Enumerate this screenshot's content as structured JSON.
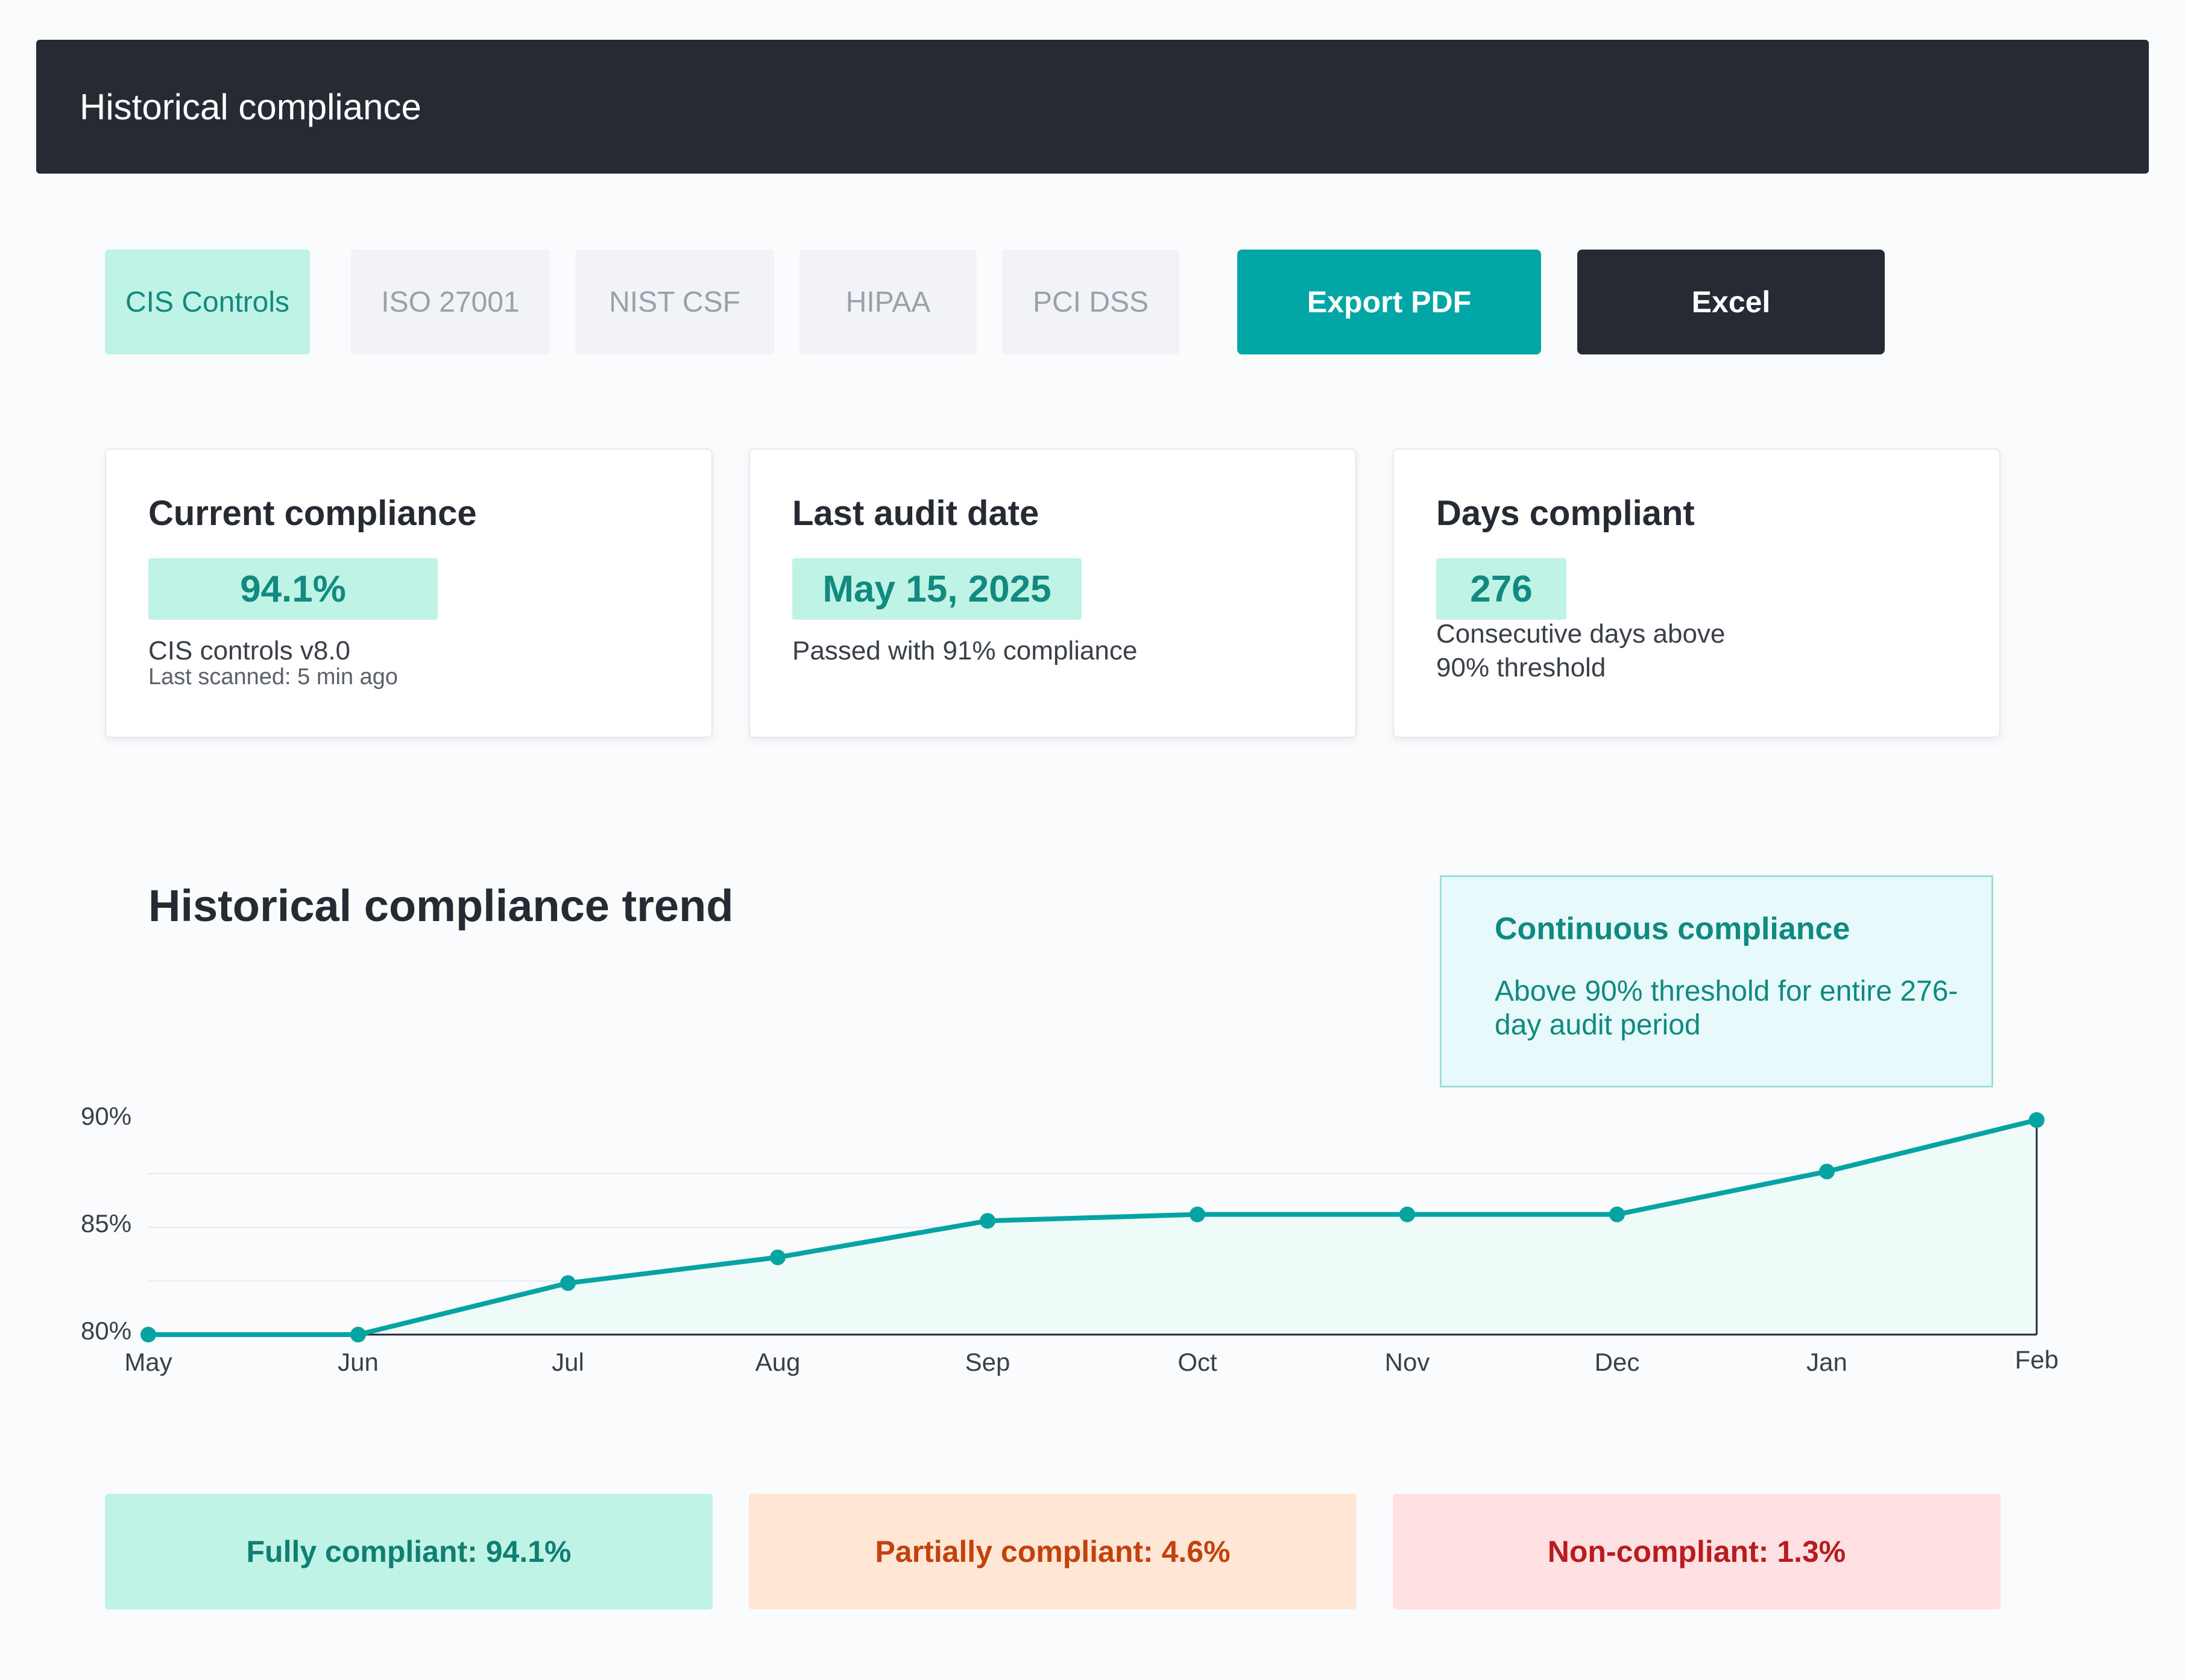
{
  "window": {
    "title": "Historical compliance"
  },
  "tabs": [
    {
      "label": "CIS Controls",
      "active": true
    },
    {
      "label": "ISO 27001",
      "active": false
    },
    {
      "label": "NIST CSF",
      "active": false
    },
    {
      "label": "HIPAA",
      "active": false
    },
    {
      "label": "PCI DSS",
      "active": false
    }
  ],
  "actions": {
    "export_pdf": "Export PDF",
    "excel": "Excel"
  },
  "cards": {
    "current": {
      "title": "Current compliance",
      "value": "94.1%",
      "line1": "CIS controls v8.0",
      "line2": "Last scanned: 5 min ago"
    },
    "audit": {
      "title": "Last audit date",
      "value": "May 15, 2025",
      "line1": "Passed with 91% compliance"
    },
    "days": {
      "title": "Days compliant",
      "value": "276",
      "line1": "Consecutive days above",
      "line2": "90% threshold"
    }
  },
  "callout": {
    "title": "Continuous compliance",
    "body": "Above 90% threshold for entire 276-day audit period"
  },
  "chart_data": {
    "type": "area",
    "title": "Historical compliance trend",
    "categories": [
      "May",
      "Jun",
      "Jul",
      "Aug",
      "Sep",
      "Oct",
      "Nov",
      "Dec",
      "Jan",
      "Feb"
    ],
    "series": [
      {
        "values": [
          80.0,
          80.0,
          82.4,
          83.6,
          85.3,
          85.6,
          85.6,
          85.6,
          87.6,
          90.0
        ]
      }
    ],
    "yticks": [
      "80%",
      "85%",
      "90%"
    ],
    "ylim": [
      80,
      90
    ],
    "grid": true,
    "colors": {
      "line": "#06a3a3",
      "fill": "#eefbf8",
      "grid": "#e6e9ee"
    }
  },
  "statuses": {
    "full": {
      "label": "Fully compliant: 94.1%",
      "bg": "#bff3e6",
      "color": "#0f7f74"
    },
    "partial": {
      "label": "Partially compliant: 4.6%",
      "bg": "#ffe6d5",
      "color": "#c2410c"
    },
    "non": {
      "label": "Non-compliant: 1.3%",
      "bg": "#ffe0e3",
      "color": "#b91c1c"
    }
  }
}
